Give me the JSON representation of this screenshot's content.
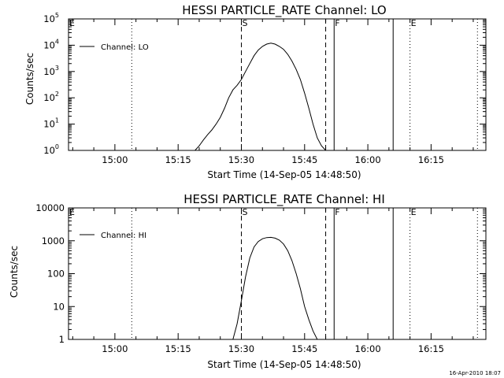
{
  "chart_data": [
    {
      "type": "line",
      "title": "HESSI PARTICLE_RATE Channel: LO",
      "xlabel": "Start Time (14-Sep-05 14:48:50)",
      "ylabel": "Counts/sec",
      "yscale": "log",
      "xlim": [
        "14:49",
        "16:28"
      ],
      "ylim": [
        1,
        100000
      ],
      "x_tick_labels": [
        "15:00",
        "15:15",
        "15:30",
        "15:45",
        "16:00",
        "16:15"
      ],
      "y_tick_labels": [
        {
          "base": "10",
          "exp": "0"
        },
        {
          "base": "10",
          "exp": "1"
        },
        {
          "base": "10",
          "exp": "2"
        },
        {
          "base": "10",
          "exp": "3"
        },
        {
          "base": "10",
          "exp": "4"
        },
        {
          "base": "10",
          "exp": "5"
        }
      ],
      "legend": "Channel: LO",
      "legend_position": "top-left",
      "series": [
        {
          "name": "Channel: LO",
          "x": [
            "15:19",
            "15:20",
            "15:21",
            "15:22",
            "15:23",
            "15:24",
            "15:25",
            "15:26",
            "15:27",
            "15:28",
            "15:29",
            "15:30",
            "15:31",
            "15:32",
            "15:33",
            "15:34",
            "15:35",
            "15:36",
            "15:37",
            "15:38",
            "15:39",
            "15:40",
            "15:41",
            "15:42",
            "15:43",
            "15:44",
            "15:45",
            "15:46",
            "15:47",
            "15:48",
            "15:49",
            "15:50"
          ],
          "y": [
            1.0,
            1.5,
            2.5,
            4,
            6,
            10,
            18,
            40,
            100,
            200,
            300,
            500,
            1000,
            2000,
            4000,
            6500,
            9000,
            11000,
            12000,
            11000,
            9000,
            7000,
            4500,
            2500,
            1200,
            500,
            150,
            40,
            10,
            3,
            1.5,
            1.0
          ]
        }
      ],
      "markers": [
        {
          "label": "E",
          "time": "14:49",
          "style": "dotted"
        },
        {
          "label": "",
          "time": "15:04",
          "style": "dotted"
        },
        {
          "label": "S",
          "time": "15:30",
          "style": "dashed"
        },
        {
          "label": "",
          "time": "15:50",
          "style": "dashed"
        },
        {
          "label": "F",
          "time": "15:52",
          "style": "solid"
        },
        {
          "label": "",
          "time": "16:06",
          "style": "solid"
        },
        {
          "label": "E",
          "time": "16:10",
          "style": "dotted"
        },
        {
          "label": "",
          "time": "16:26",
          "style": "dotted"
        }
      ]
    },
    {
      "type": "line",
      "title": "HESSI PARTICLE_RATE Channel: HI",
      "xlabel": "Start Time (14-Sep-05 14:48:50)",
      "ylabel": "Counts/sec",
      "yscale": "log",
      "xlim": [
        "14:49",
        "16:28"
      ],
      "ylim": [
        1,
        10000
      ],
      "x_tick_labels": [
        "15:00",
        "15:15",
        "15:30",
        "15:45",
        "16:00",
        "16:15"
      ],
      "y_tick_labels": [
        "1",
        "10",
        "100",
        "1000",
        "10000"
      ],
      "legend": "Channel: HI",
      "legend_position": "top-left",
      "series": [
        {
          "name": "Channel: HI",
          "x": [
            "15:28",
            "15:29",
            "15:30",
            "15:31",
            "15:32",
            "15:33",
            "15:34",
            "15:35",
            "15:36",
            "15:37",
            "15:38",
            "15:39",
            "15:40",
            "15:41",
            "15:42",
            "15:43",
            "15:44",
            "15:45",
            "15:46",
            "15:47",
            "15:48"
          ],
          "y": [
            1.0,
            3,
            15,
            80,
            300,
            650,
            950,
            1150,
            1250,
            1270,
            1200,
            1050,
            800,
            500,
            250,
            100,
            35,
            10,
            4,
            1.8,
            1.0
          ]
        }
      ],
      "markers": [
        {
          "label": "E",
          "time": "14:49",
          "style": "dotted"
        },
        {
          "label": "",
          "time": "15:04",
          "style": "dotted"
        },
        {
          "label": "S",
          "time": "15:30",
          "style": "dashed"
        },
        {
          "label": "",
          "time": "15:50",
          "style": "dashed"
        },
        {
          "label": "F",
          "time": "15:52",
          "style": "solid"
        },
        {
          "label": "",
          "time": "16:06",
          "style": "solid"
        },
        {
          "label": "E",
          "time": "16:10",
          "style": "dotted"
        },
        {
          "label": "",
          "time": "16:26",
          "style": "dotted"
        }
      ]
    }
  ],
  "footer_timestamp": "16-Apr-2010 18:07"
}
